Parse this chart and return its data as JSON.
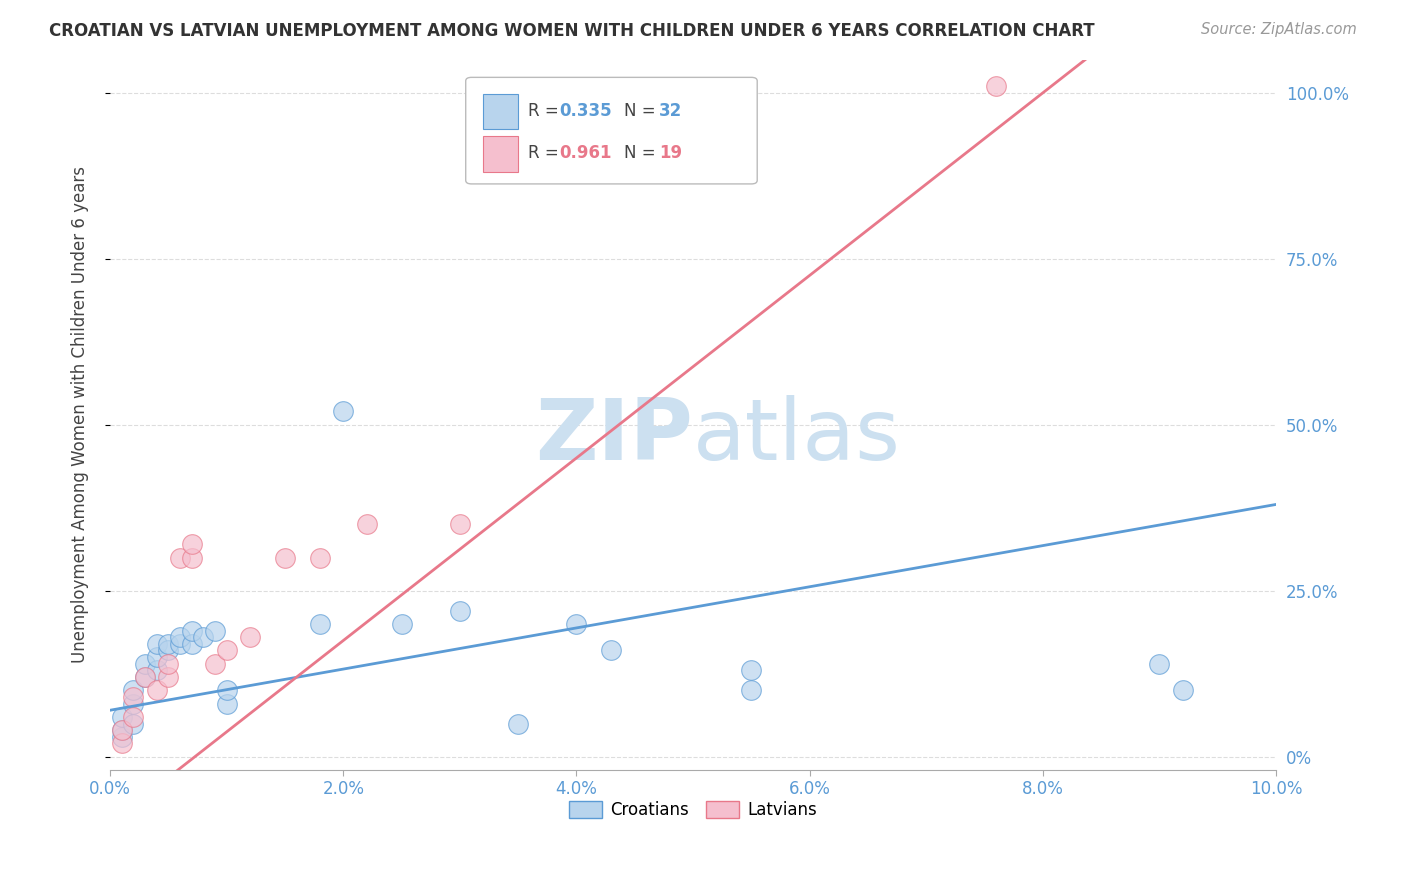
{
  "title": "CROATIAN VS LATVIAN UNEMPLOYMENT AMONG WOMEN WITH CHILDREN UNDER 6 YEARS CORRELATION CHART",
  "source": "Source: ZipAtlas.com",
  "ylabel": "Unemployment Among Women with Children Under 6 years",
  "legend_croatians": "Croatians",
  "legend_latvians": "Latvians",
  "croatian_R": "0.335",
  "croatian_N": "32",
  "latvian_R": "0.961",
  "latvian_N": "19",
  "croatian_fill": "#b8d4ed",
  "latvian_fill": "#f5bfce",
  "croatian_edge": "#5b9bd5",
  "latvian_edge": "#e8788a",
  "background_color": "#ffffff",
  "watermark_color": "#cce0f0",
  "xlim": [
    0.0,
    0.1
  ],
  "ylim": [
    -0.02,
    1.05
  ],
  "croatian_x": [
    0.001,
    0.001,
    0.001,
    0.002,
    0.002,
    0.002,
    0.003,
    0.003,
    0.004,
    0.004,
    0.004,
    0.005,
    0.005,
    0.006,
    0.006,
    0.007,
    0.007,
    0.008,
    0.009,
    0.01,
    0.01,
    0.018,
    0.02,
    0.025,
    0.03,
    0.035,
    0.04,
    0.043,
    0.055,
    0.055,
    0.09,
    0.092
  ],
  "croatian_y": [
    0.03,
    0.04,
    0.06,
    0.05,
    0.08,
    0.1,
    0.12,
    0.14,
    0.13,
    0.15,
    0.17,
    0.16,
    0.17,
    0.17,
    0.18,
    0.17,
    0.19,
    0.18,
    0.19,
    0.08,
    0.1,
    0.2,
    0.52,
    0.2,
    0.22,
    0.05,
    0.2,
    0.16,
    0.1,
    0.13,
    0.14,
    0.1
  ],
  "latvian_x": [
    0.001,
    0.001,
    0.002,
    0.002,
    0.003,
    0.004,
    0.005,
    0.005,
    0.006,
    0.007,
    0.007,
    0.009,
    0.01,
    0.012,
    0.015,
    0.018,
    0.022,
    0.03,
    0.076
  ],
  "latvian_y": [
    0.02,
    0.04,
    0.06,
    0.09,
    0.12,
    0.1,
    0.12,
    0.14,
    0.3,
    0.3,
    0.32,
    0.14,
    0.16,
    0.18,
    0.3,
    0.3,
    0.35,
    0.35,
    1.01
  ],
  "ytick_values": [
    0.0,
    0.25,
    0.5,
    0.75,
    1.0
  ],
  "ytick_labels_right": [
    "0%",
    "25.0%",
    "50.0%",
    "75.0%",
    "100.0%"
  ],
  "xtick_values": [
    0.0,
    0.02,
    0.04,
    0.06,
    0.08,
    0.1
  ],
  "xtick_labels": [
    "0.0%",
    "2.0%",
    "4.0%",
    "6.0%",
    "8.0%",
    "10.0%"
  ],
  "tick_color": "#5b9bd5",
  "grid_color": "#dddddd",
  "title_color": "#333333",
  "source_color": "#999999",
  "ylabel_color": "#444444"
}
